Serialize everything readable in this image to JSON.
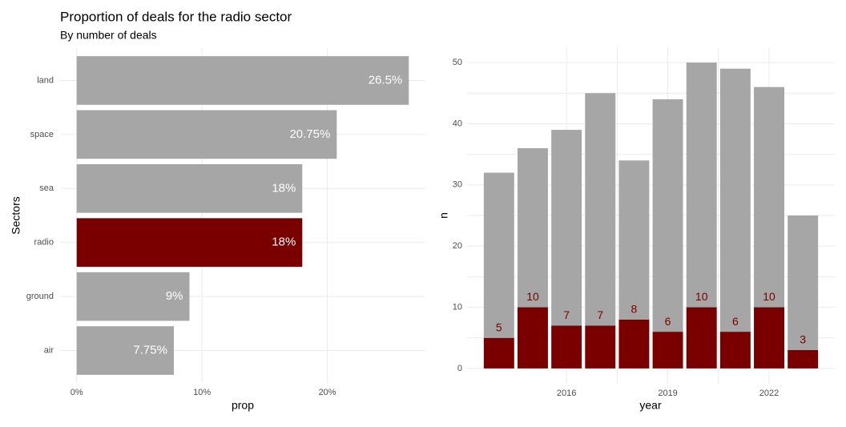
{
  "chart_data": [
    {
      "type": "barh",
      "title": "Proportion of deals for the radio sector",
      "subtitle": "By number of deals",
      "categories": [
        "land",
        "space",
        "sea",
        "radio",
        "ground",
        "air"
      ],
      "values": [
        26.5,
        20.75,
        18,
        18,
        9,
        7.75
      ],
      "value_labels": [
        "26.5%",
        "20.75%",
        "18%",
        "18%",
        "9%",
        "7.75%"
      ],
      "colors": [
        "#a6a6a6",
        "#a6a6a6",
        "#a6a6a6",
        "#7a0000",
        "#a6a6a6",
        "#a6a6a6"
      ],
      "xlabel": "prop",
      "ylabel": "Sectors",
      "xlim": [
        -1.325,
        27.825
      ],
      "xticks": [
        {
          "value": 0,
          "label": "0%"
        },
        {
          "value": 10,
          "label": "10%"
        },
        {
          "value": 20,
          "label": "20%"
        }
      ],
      "grid": true
    },
    {
      "type": "bar",
      "stacked": true,
      "x": [
        2014,
        2015,
        2016,
        2017,
        2018,
        2019,
        2020,
        2021,
        2022,
        2023
      ],
      "series": [
        {
          "color": "#7a0000",
          "values": [
            5,
            10,
            7,
            7,
            8,
            6,
            10,
            6,
            10,
            3
          ]
        },
        {
          "color": "#a6a6a6",
          "values": [
            27,
            26,
            32,
            38,
            26,
            38,
            40,
            43,
            36,
            22
          ]
        }
      ],
      "xlabel": "year",
      "ylabel": "n",
      "xlim": [
        2013.055,
        2023.945
      ],
      "xticks": [
        2016,
        2019,
        2022
      ],
      "ylim": [
        -2.5,
        52.5
      ],
      "yticks": [
        0,
        10,
        20,
        30,
        40,
        50
      ],
      "grid": true
    }
  ]
}
